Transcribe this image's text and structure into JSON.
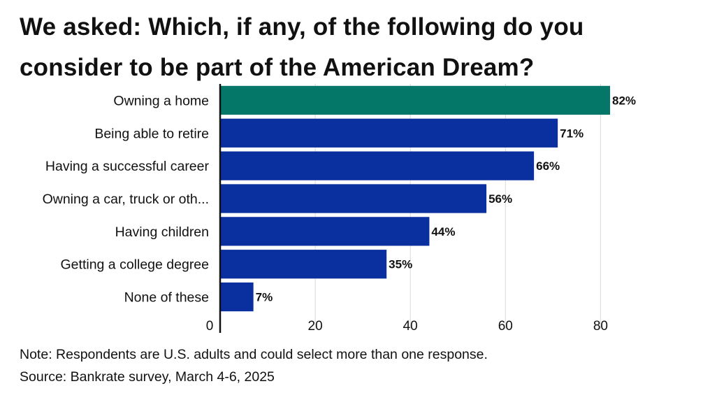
{
  "title": "We asked: Which, if any, of the following do you consider to be part of the American Dream?",
  "note": "Note: Respondents are U.S. adults and could select more than one response.",
  "source": "Source: Bankrate survey, March 4-6, 2025",
  "colors": {
    "highlight": "#047769",
    "bar": "#0a2f9e",
    "grid": "#d9d9d9",
    "axis": "#111111"
  },
  "chart_data": {
    "type": "bar",
    "orientation": "horizontal",
    "categories": [
      "Owning a home",
      "Being able to retire",
      "Having a successful career",
      "Owning a car, truck or oth...",
      "Having children",
      "Getting a college degree",
      "None of these"
    ],
    "values": [
      82,
      71,
      66,
      56,
      44,
      35,
      7
    ],
    "data_labels": [
      "82%",
      "71%",
      "66%",
      "56%",
      "44%",
      "35%",
      "7%"
    ],
    "highlighted_category": "Owning a home",
    "xlim": [
      0,
      82
    ],
    "xticks": [
      0,
      20,
      40,
      60,
      80
    ],
    "grid": true,
    "legend": "none"
  }
}
